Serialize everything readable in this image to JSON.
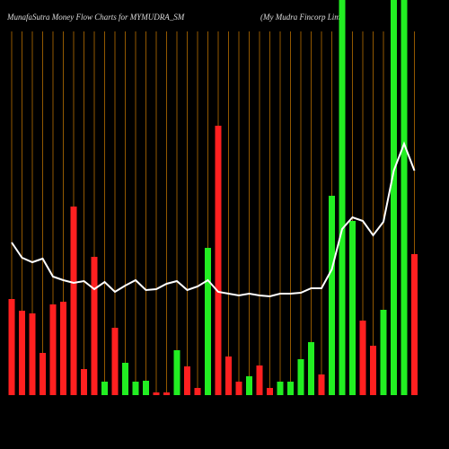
{
  "chart_data": {
    "type": "bar",
    "title": "MunafaSutra  Money Flow  Charts for MYMUDRA_SM",
    "subtitle": "(My Mudra  Fincorp Limi",
    "ylim": [
      0,
      440
    ],
    "series": [
      {
        "type": "bar",
        "values": [
          107,
          94,
          91,
          47,
          101,
          104,
          210,
          29,
          154,
          15,
          75,
          36,
          15,
          16,
          3,
          3,
          50,
          32,
          8,
          164,
          300,
          43,
          15,
          21,
          33,
          8,
          15,
          15,
          40,
          59,
          23,
          222,
          460,
          194,
          83,
          55,
          95,
          460,
          460,
          157
        ],
        "colors": [
          "#ff2020",
          "#ff2020",
          "#ff2020",
          "#ff2020",
          "#ff2020",
          "#ff2020",
          "#ff2020",
          "#ff2020",
          "#ff2020",
          "#22ee22",
          "#ff2020",
          "#22ee22",
          "#22ee22",
          "#22ee22",
          "#ff2020",
          "#ff2020",
          "#22ee22",
          "#ff2020",
          "#ff2020",
          "#22ee22",
          "#ff2020",
          "#ff2020",
          "#ff2020",
          "#22ee22",
          "#ff2020",
          "#ff2020",
          "#22ee22",
          "#22ee22",
          "#22ee22",
          "#22ee22",
          "#ff2020",
          "#22ee22",
          "#22ee22",
          "#22ee22",
          "#ff2020",
          "#ff2020",
          "#22ee22",
          "#22ee22",
          "#22ee22",
          "#ff2020"
        ]
      },
      {
        "type": "line",
        "color": "#ffffff",
        "values": [
          170,
          153,
          148,
          152,
          132,
          128,
          125,
          127,
          118,
          126,
          115,
          122,
          128,
          117,
          118,
          124,
          127,
          117,
          121,
          128,
          115,
          113,
          111,
          113,
          111,
          110,
          113,
          113,
          114,
          119,
          119,
          140,
          185,
          198,
          194,
          178,
          193,
          250,
          280,
          250
        ]
      }
    ],
    "grid_color": "#b86e00"
  }
}
